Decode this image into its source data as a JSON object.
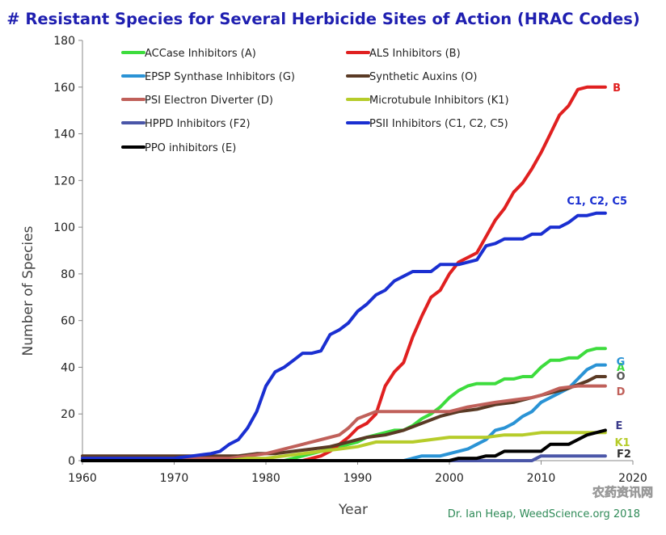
{
  "chart_data": {
    "type": "line",
    "title": "# Resistant Species for Several Herbicide Sites of Action (HRAC Codes)",
    "xlabel": "Year",
    "ylabel": "Number of Species",
    "xlim": [
      1960,
      2020
    ],
    "ylim": [
      0,
      180
    ],
    "x_ticks": [
      "1960",
      "1970",
      "1980",
      "1990",
      "2000",
      "2010",
      "2020"
    ],
    "y_ticks": [
      "0",
      "20",
      "40",
      "60",
      "80",
      "100",
      "120",
      "140",
      "160",
      "180"
    ],
    "grid": false,
    "legend_placement": "top",
    "credit": "Dr. Ian Heap, WeedScience.org 2018",
    "watermark": "农药资讯网",
    "series": [
      {
        "name": "ACCase Inhibitors (A)",
        "end_label": "A",
        "color": "#3ddc3d",
        "x": [
          1960,
          1982,
          1983,
          1984,
          1985,
          1986,
          1987,
          1988,
          1989,
          1990,
          1991,
          1992,
          1993,
          1994,
          1995,
          1996,
          1997,
          1998,
          1999,
          2000,
          2001,
          2002,
          2003,
          2004,
          2005,
          2006,
          2007,
          2008,
          2009,
          2010,
          2011,
          2012,
          2013,
          2014,
          2015,
          2016,
          2017
        ],
        "y": [
          0,
          0,
          1,
          2,
          3,
          4,
          5,
          6,
          7,
          8,
          10,
          11,
          12,
          13,
          13,
          15,
          18,
          20,
          23,
          27,
          30,
          32,
          33,
          33,
          33,
          35,
          35,
          36,
          36,
          40,
          43,
          43,
          44,
          44,
          47,
          48,
          48
        ]
      },
      {
        "name": "ALS Inhibitors (B)",
        "end_label": "B",
        "color": "#e02020",
        "x": [
          1960,
          1982,
          1983,
          1984,
          1985,
          1986,
          1987,
          1988,
          1989,
          1990,
          1991,
          1992,
          1993,
          1994,
          1995,
          1996,
          1997,
          1998,
          1999,
          2000,
          2001,
          2002,
          2003,
          2004,
          2005,
          2006,
          2007,
          2008,
          2009,
          2010,
          2011,
          2012,
          2013,
          2014,
          2015,
          2016,
          2017
        ],
        "y": [
          0,
          0,
          0,
          0,
          1,
          2,
          4,
          7,
          10,
          14,
          16,
          20,
          32,
          38,
          42,
          53,
          62,
          70,
          73,
          80,
          85,
          87,
          89,
          96,
          103,
          108,
          115,
          119,
          125,
          132,
          140,
          148,
          152,
          159,
          160,
          160,
          160
        ]
      },
      {
        "name": "EPSP Synthase Inhibitors (G)",
        "end_label": "G",
        "color": "#2a93d5",
        "x": [
          1960,
          1995,
          1996,
          1997,
          1998,
          1999,
          2000,
          2001,
          2002,
          2003,
          2004,
          2005,
          2006,
          2007,
          2008,
          2009,
          2010,
          2011,
          2012,
          2013,
          2014,
          2015,
          2016,
          2017
        ],
        "y": [
          0,
          0,
          1,
          2,
          2,
          2,
          3,
          4,
          5,
          7,
          9,
          13,
          14,
          16,
          19,
          21,
          25,
          27,
          29,
          31,
          35,
          39,
          41,
          41
        ]
      },
      {
        "name": "Synthetic Auxins (O)",
        "end_label": "O",
        "color": "#5a3a25",
        "x": [
          1960,
          1977,
          1979,
          1981,
          1983,
          1985,
          1987,
          1989,
          1991,
          1993,
          1995,
          1997,
          1999,
          2001,
          2003,
          2005,
          2007,
          2009,
          2011,
          2013,
          2015,
          2016,
          2017
        ],
        "y": [
          2,
          2,
          3,
          3,
          4,
          5,
          6,
          8,
          10,
          11,
          13,
          16,
          19,
          21,
          22,
          24,
          25,
          27,
          29,
          31,
          34,
          36,
          36
        ]
      },
      {
        "name": "PSI Electron Diverter (D)",
        "end_label": "D",
        "color": "#c0605a",
        "x": [
          1960,
          1976,
          1980,
          1982,
          1984,
          1986,
          1988,
          1989,
          1990,
          1992,
          1995,
          2000,
          2002,
          2005,
          2007,
          2009,
          2010,
          2012,
          2014,
          2017
        ],
        "y": [
          1,
          1,
          3,
          5,
          7,
          9,
          11,
          14,
          18,
          21,
          21,
          21,
          23,
          25,
          26,
          27,
          28,
          31,
          32,
          32
        ]
      },
      {
        "name": "Microtubule Inhibitors (K1)",
        "end_label": "K1",
        "color": "#b6cc2a",
        "x": [
          1960,
          1976,
          1978,
          1980,
          1982,
          1984,
          1986,
          1988,
          1990,
          1992,
          1994,
          1996,
          1998,
          2000,
          2002,
          2004,
          2006,
          2008,
          2010,
          2013,
          2015,
          2017
        ],
        "y": [
          0,
          0,
          1,
          1,
          2,
          3,
          4,
          5,
          6,
          8,
          8,
          8,
          9,
          10,
          10,
          10,
          11,
          11,
          12,
          12,
          12,
          12
        ]
      },
      {
        "name": "HPPD Inhibitors (F2)",
        "end_label": "F2",
        "color": "#4a56a8",
        "x": [
          1960,
          2009,
          2010,
          2017
        ],
        "y": [
          0,
          0,
          2,
          2
        ]
      },
      {
        "name": "PSII Inhibitors (C1, C2, C5)",
        "end_label": "C1, C2, C5",
        "color": "#1a2fd1",
        "x": [
          1960,
          1970,
          1972,
          1974,
          1975,
          1976,
          1977,
          1978,
          1979,
          1980,
          1981,
          1982,
          1983,
          1984,
          1985,
          1986,
          1987,
          1988,
          1989,
          1990,
          1991,
          1992,
          1993,
          1994,
          1995,
          1996,
          1997,
          1998,
          1999,
          2000,
          2001,
          2002,
          2003,
          2004,
          2005,
          2006,
          2007,
          2008,
          2009,
          2010,
          2011,
          2012,
          2013,
          2014,
          2015,
          2016,
          2017
        ],
        "y": [
          1,
          1,
          2,
          3,
          4,
          7,
          9,
          14,
          21,
          32,
          38,
          40,
          43,
          46,
          46,
          47,
          54,
          56,
          59,
          64,
          67,
          71,
          73,
          77,
          79,
          81,
          81,
          81,
          84,
          84,
          84,
          85,
          86,
          92,
          93,
          95,
          95,
          95,
          97,
          97,
          100,
          100,
          102,
          105,
          105,
          106,
          106
        ]
      },
      {
        "name": "PPO inhibitors (E)",
        "end_label": "E",
        "color": "#000000",
        "x": [
          1960,
          2000,
          2001,
          2003,
          2004,
          2005,
          2006,
          2007,
          2008,
          2009,
          2010,
          2011,
          2012,
          2013,
          2014,
          2015,
          2016,
          2017
        ],
        "y": [
          0,
          0,
          1,
          1,
          2,
          2,
          4,
          4,
          4,
          4,
          4,
          7,
          7,
          7,
          9,
          11,
          12,
          13
        ]
      }
    ]
  }
}
